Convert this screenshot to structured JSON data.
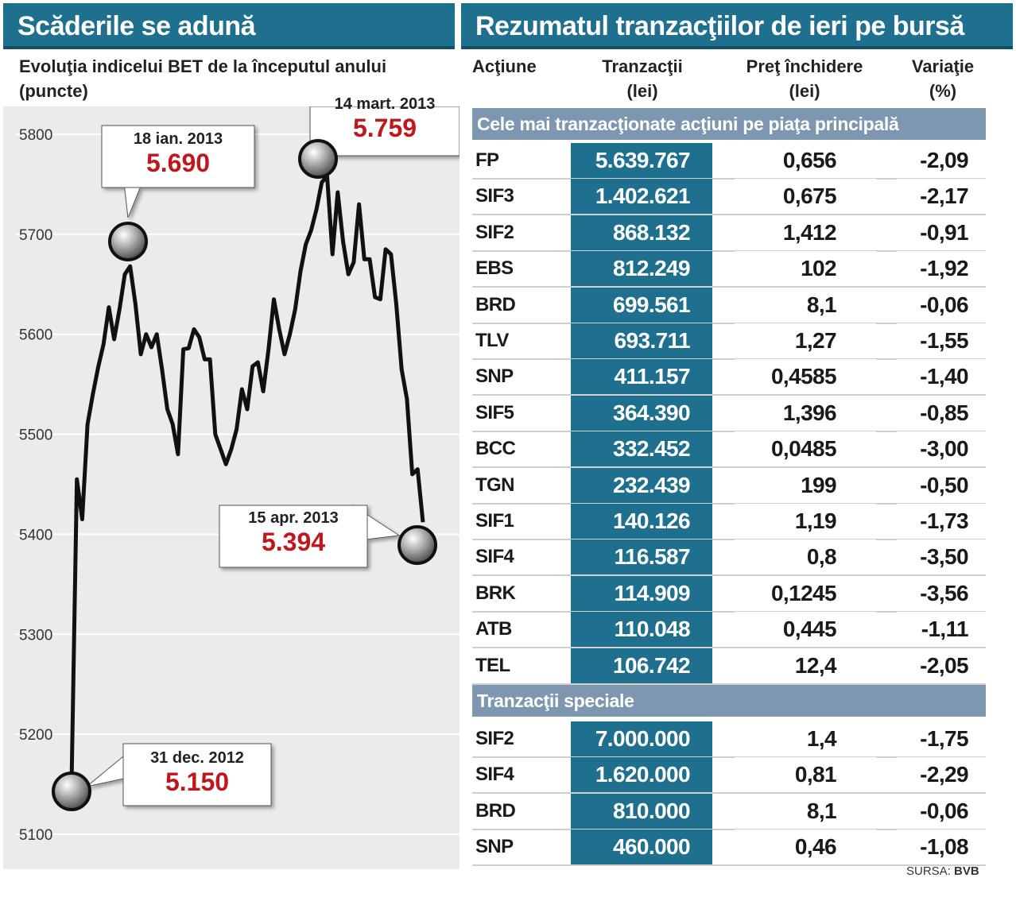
{
  "left_title": "Scăderile se adună",
  "right_title": "Rezumatul tranzacţiilor de ieri pe bursă",
  "chart_data": {
    "type": "line",
    "title": "Evoluţia indicelui BET de la începutul anului (puncte)",
    "y_ticks": [
      5800,
      5700,
      5600,
      5500,
      5400,
      5300,
      5200,
      5100
    ],
    "ylim": [
      5100,
      5830
    ],
    "grid": "horizontal",
    "series": [
      {
        "values": [
          5150,
          5455,
          5415,
          5510,
          5540,
          5567,
          5590,
          5627,
          5595,
          5625,
          5660,
          5668,
          5630,
          5580,
          5600,
          5587,
          5600,
          5565,
          5525,
          5510,
          5480,
          5585,
          5586,
          5605,
          5597,
          5575,
          5575,
          5500,
          5485,
          5470,
          5485,
          5505,
          5545,
          5525,
          5568,
          5572,
          5543,
          5585,
          5635,
          5605,
          5580,
          5600,
          5625,
          5663,
          5690,
          5704,
          5725,
          5752,
          5758,
          5680,
          5742,
          5693,
          5660,
          5672,
          5730,
          5675,
          5675,
          5637,
          5635,
          5685,
          5680,
          5630,
          5565,
          5535,
          5460,
          5465,
          5412
        ]
      }
    ],
    "annotations": [
      {
        "date": "31 dec. 2012",
        "value": "5.150"
      },
      {
        "date": "18 ian. 2013",
        "value": "5.690"
      },
      {
        "date": "14 mart. 2013",
        "value": "5.759"
      },
      {
        "date": "15 apr. 2013",
        "value": "5.394"
      }
    ]
  },
  "table": {
    "headers": {
      "actiune": "Acţiune",
      "tranzactii": [
        "Tranzacţii",
        "(lei)"
      ],
      "pret": [
        "Preţ închidere",
        "(lei)"
      ],
      "variatie": [
        "Variaţie",
        "(%)"
      ]
    },
    "section1_title": "Cele mai tranzacţionate acţiuni pe piaţa principală",
    "section1_rows": [
      {
        "sym": "FP",
        "tranz": "5.639.767",
        "pret": "0,656",
        "var": "-2,09"
      },
      {
        "sym": "SIF3",
        "tranz": "1.402.621",
        "pret": "0,675",
        "var": "-2,17"
      },
      {
        "sym": "SIF2",
        "tranz": "868.132",
        "pret": "1,412",
        "var": "-0,91"
      },
      {
        "sym": "EBS",
        "tranz": "812.249",
        "pret": "102",
        "var": "-1,92"
      },
      {
        "sym": "BRD",
        "tranz": "699.561",
        "pret": "8,1",
        "var": "-0,06"
      },
      {
        "sym": "TLV",
        "tranz": "693.711",
        "pret": "1,27",
        "var": "-1,55"
      },
      {
        "sym": "SNP",
        "tranz": "411.157",
        "pret": "0,4585",
        "var": "-1,40"
      },
      {
        "sym": "SIF5",
        "tranz": "364.390",
        "pret": "1,396",
        "var": "-0,85"
      },
      {
        "sym": "BCC",
        "tranz": "332.452",
        "pret": "0,0485",
        "var": "-3,00"
      },
      {
        "sym": "TGN",
        "tranz": "232.439",
        "pret": "199",
        "var": "-0,50"
      },
      {
        "sym": "SIF1",
        "tranz": "140.126",
        "pret": "1,19",
        "var": "-1,73"
      },
      {
        "sym": "SIF4",
        "tranz": "116.587",
        "pret": "0,8",
        "var": "-3,50"
      },
      {
        "sym": "BRK",
        "tranz": "114.909",
        "pret": "0,1245",
        "var": "-3,56"
      },
      {
        "sym": "ATB",
        "tranz": "110.048",
        "pret": "0,445",
        "var": "-1,11"
      },
      {
        "sym": "TEL",
        "tranz": "106.742",
        "pret": "12,4",
        "var": "-2,05"
      }
    ],
    "section2_title": "Tranzacţii speciale",
    "section2_rows": [
      {
        "sym": "SIF2",
        "tranz": "7.000.000",
        "pret": "1,4",
        "var": "-1,75"
      },
      {
        "sym": "SIF4",
        "tranz": "1.620.000",
        "pret": "0,81",
        "var": "-2,29"
      },
      {
        "sym": "BRD",
        "tranz": "810.000",
        "pret": "8,1",
        "var": "-0,06"
      },
      {
        "sym": "SNP",
        "tranz": "460.000",
        "pret": "0,46",
        "var": "-1,08"
      }
    ]
  },
  "source": {
    "label": "SURSA:",
    "name": "BVB"
  },
  "colors": {
    "title_bg": "#1f6f8f",
    "section_bg": "#7e97b0",
    "value_red": "#c0171c",
    "line": "#111111"
  }
}
